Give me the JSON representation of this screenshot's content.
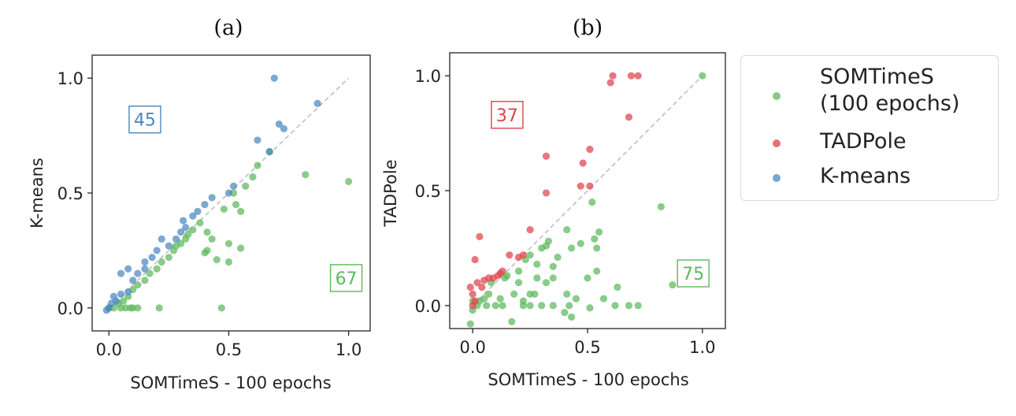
{
  "colors": {
    "somtimes": "#5cb85c",
    "tadpole": "#e0414a",
    "kmeans": "#4a86c0",
    "diag": "#bbbbbb"
  },
  "legend": {
    "entries": [
      {
        "line1": "SOMTimeS",
        "line2": "(100 epochs)",
        "color": "#5cb85c"
      },
      {
        "line1": "TADPole",
        "line2": "",
        "color": "#e0414a"
      },
      {
        "line1": "K-means",
        "line2": "",
        "color": "#4a86c0"
      }
    ]
  },
  "chart_data": [
    {
      "type": "scatter",
      "panel_label": "(a)",
      "xlabel": "SOMTimeS - 100 epochs",
      "ylabel": "K-means",
      "xlim": [
        -0.07,
        1.09
      ],
      "ylim": [
        -0.1,
        1.1
      ],
      "xticks": [
        "0.0",
        "0.5",
        "1.0"
      ],
      "yticks": [
        "0.0",
        "0.5",
        "1.0"
      ],
      "xtick_values": [
        0.0,
        0.5,
        1.0
      ],
      "ytick_values": [
        0.0,
        0.5,
        1.0
      ],
      "annotations": [
        {
          "text": "45",
          "color": "#4a86c0",
          "x": 0.15,
          "y": 0.82
        },
        {
          "text": "67",
          "color": "#5cb85c",
          "x": 0.99,
          "y": 0.13
        }
      ],
      "series": [
        {
          "name": "SOMTimeS (100 epochs)",
          "color": "#5cb85c",
          "points": [
            [
              0.0,
              0.0
            ],
            [
              0.02,
              0.0
            ],
            [
              0.04,
              0.02
            ],
            [
              0.05,
              0.0
            ],
            [
              0.06,
              0.03
            ],
            [
              0.07,
              0.0
            ],
            [
              0.08,
              0.05
            ],
            [
              0.09,
              0.0
            ],
            [
              0.1,
              0.0
            ],
            [
              0.12,
              0.0
            ],
            [
              0.1,
              0.08
            ],
            [
              0.12,
              0.1
            ],
            [
              0.15,
              0.12
            ],
            [
              0.17,
              0.15
            ],
            [
              0.2,
              0.17
            ],
            [
              0.21,
              0.0
            ],
            [
              0.22,
              0.2
            ],
            [
              0.25,
              0.22
            ],
            [
              0.27,
              0.25
            ],
            [
              0.28,
              0.27
            ],
            [
              0.3,
              0.28
            ],
            [
              0.32,
              0.3
            ],
            [
              0.33,
              0.32
            ],
            [
              0.35,
              0.34
            ],
            [
              0.38,
              0.37
            ],
            [
              0.4,
              0.24
            ],
            [
              0.41,
              0.25
            ],
            [
              0.41,
              0.33
            ],
            [
              0.43,
              0.3
            ],
            [
              0.45,
              0.21
            ],
            [
              0.47,
              0.0
            ],
            [
              0.48,
              0.43
            ],
            [
              0.5,
              0.28
            ],
            [
              0.5,
              0.2
            ],
            [
              0.52,
              0.5
            ],
            [
              0.53,
              0.45
            ],
            [
              0.55,
              0.42
            ],
            [
              0.55,
              0.26
            ],
            [
              0.57,
              0.53
            ],
            [
              0.6,
              0.57
            ],
            [
              0.62,
              0.62
            ],
            [
              0.67,
              0.68
            ],
            [
              0.82,
              0.58
            ],
            [
              1.0,
              0.55
            ]
          ]
        },
        {
          "name": "K-means",
          "color": "#4a86c0",
          "points": [
            [
              -0.01,
              -0.01
            ],
            [
              0.0,
              0.0
            ],
            [
              0.01,
              0.02
            ],
            [
              0.02,
              0.05
            ],
            [
              0.03,
              0.03
            ],
            [
              0.05,
              0.06
            ],
            [
              0.05,
              0.15
            ],
            [
              0.08,
              0.17
            ],
            [
              0.08,
              0.07
            ],
            [
              0.1,
              0.12
            ],
            [
              0.12,
              0.15
            ],
            [
              0.15,
              0.17
            ],
            [
              0.15,
              0.2
            ],
            [
              0.18,
              0.22
            ],
            [
              0.2,
              0.25
            ],
            [
              0.22,
              0.3
            ],
            [
              0.25,
              0.27
            ],
            [
              0.28,
              0.3
            ],
            [
              0.3,
              0.33
            ],
            [
              0.31,
              0.38
            ],
            [
              0.32,
              0.35
            ],
            [
              0.35,
              0.4
            ],
            [
              0.37,
              0.42
            ],
            [
              0.4,
              0.45
            ],
            [
              0.43,
              0.48
            ],
            [
              0.5,
              0.5
            ],
            [
              0.52,
              0.53
            ],
            [
              0.62,
              0.73
            ],
            [
              0.67,
              0.68
            ],
            [
              0.69,
              1.0
            ],
            [
              0.71,
              0.8
            ],
            [
              0.73,
              0.78
            ],
            [
              0.87,
              0.89
            ]
          ]
        }
      ]
    },
    {
      "type": "scatter",
      "panel_label": "(b)",
      "xlabel": "SOMTimeS - 100 epochs",
      "ylabel": "TADPole",
      "xlim": [
        -0.1,
        1.1
      ],
      "ylim": [
        -0.1,
        1.1
      ],
      "xticks": [
        "0.0",
        "0.5",
        "1.0"
      ],
      "yticks": [
        "0.0",
        "0.5",
        "1.0"
      ],
      "xtick_values": [
        0.0,
        0.5,
        1.0
      ],
      "ytick_values": [
        0.0,
        0.5,
        1.0
      ],
      "annotations": [
        {
          "text": "37",
          "color": "#e0414a",
          "x": 0.15,
          "y": 0.83
        },
        {
          "text": "75",
          "color": "#5cb85c",
          "x": 0.96,
          "y": 0.14
        }
      ],
      "series": [
        {
          "name": "SOMTimeS (100 epochs)",
          "color": "#5cb85c",
          "points": [
            [
              -0.01,
              -0.08
            ],
            [
              0.0,
              -0.02
            ],
            [
              0.0,
              0.02
            ],
            [
              0.02,
              0.0
            ],
            [
              0.03,
              0.02
            ],
            [
              0.05,
              0.03
            ],
            [
              0.06,
              0.0
            ],
            [
              0.07,
              0.05
            ],
            [
              0.08,
              0.1
            ],
            [
              0.1,
              0.0
            ],
            [
              0.12,
              0.03
            ],
            [
              0.13,
              0.0
            ],
            [
              0.14,
              0.12
            ],
            [
              0.15,
              0.13
            ],
            [
              0.17,
              -0.07
            ],
            [
              0.18,
              0.05
            ],
            [
              0.2,
              0.15
            ],
            [
              0.2,
              0.1
            ],
            [
              0.22,
              0.0
            ],
            [
              0.22,
              0.02
            ],
            [
              0.23,
              0.2
            ],
            [
              0.25,
              0.05
            ],
            [
              0.25,
              0.0
            ],
            [
              0.25,
              0.22
            ],
            [
              0.27,
              0.05
            ],
            [
              0.28,
              0.12
            ],
            [
              0.28,
              0.18
            ],
            [
              0.3,
              0.0
            ],
            [
              0.3,
              0.25
            ],
            [
              0.32,
              0.1
            ],
            [
              0.32,
              0.26
            ],
            [
              0.33,
              0.28
            ],
            [
              0.35,
              0.0
            ],
            [
              0.35,
              0.12
            ],
            [
              0.35,
              0.17
            ],
            [
              0.37,
              0.21
            ],
            [
              0.4,
              -0.03
            ],
            [
              0.41,
              0.05
            ],
            [
              0.41,
              0.33
            ],
            [
              0.42,
              0.0
            ],
            [
              0.43,
              0.25
            ],
            [
              0.43,
              -0.05
            ],
            [
              0.45,
              0.03
            ],
            [
              0.47,
              0.27
            ],
            [
              0.5,
              0.12
            ],
            [
              0.51,
              -0.01
            ],
            [
              0.52,
              0.45
            ],
            [
              0.53,
              0.29
            ],
            [
              0.54,
              0.25
            ],
            [
              0.54,
              0.15
            ],
            [
              0.55,
              0.32
            ],
            [
              0.57,
              0.03
            ],
            [
              0.62,
              0.0
            ],
            [
              0.63,
              0.08
            ],
            [
              0.68,
              0.0
            ],
            [
              0.72,
              0.0
            ],
            [
              0.82,
              0.43
            ],
            [
              0.87,
              0.09
            ],
            [
              1.0,
              1.0
            ]
          ]
        },
        {
          "name": "TADPole",
          "color": "#e0414a",
          "points": [
            [
              -0.01,
              0.08
            ],
            [
              0.0,
              0.0
            ],
            [
              0.0,
              0.05
            ],
            [
              0.01,
              0.02
            ],
            [
              0.01,
              0.2
            ],
            [
              0.02,
              0.1
            ],
            [
              0.03,
              0.3
            ],
            [
              0.04,
              0.08
            ],
            [
              0.05,
              0.11
            ],
            [
              0.07,
              0.12
            ],
            [
              0.09,
              0.12
            ],
            [
              0.11,
              0.13
            ],
            [
              0.12,
              0.14
            ],
            [
              0.13,
              0.15
            ],
            [
              0.16,
              0.22
            ],
            [
              0.2,
              0.21
            ],
            [
              0.22,
              0.22
            ],
            [
              0.25,
              0.33
            ],
            [
              0.32,
              0.65
            ],
            [
              0.32,
              0.49
            ],
            [
              0.47,
              0.52
            ],
            [
              0.48,
              0.62
            ],
            [
              0.51,
              0.68
            ],
            [
              0.51,
              0.52
            ],
            [
              0.6,
              0.97
            ],
            [
              0.61,
              1.0
            ],
            [
              0.68,
              0.82
            ],
            [
              0.69,
              1.0
            ],
            [
              0.72,
              1.0
            ]
          ]
        }
      ]
    }
  ]
}
